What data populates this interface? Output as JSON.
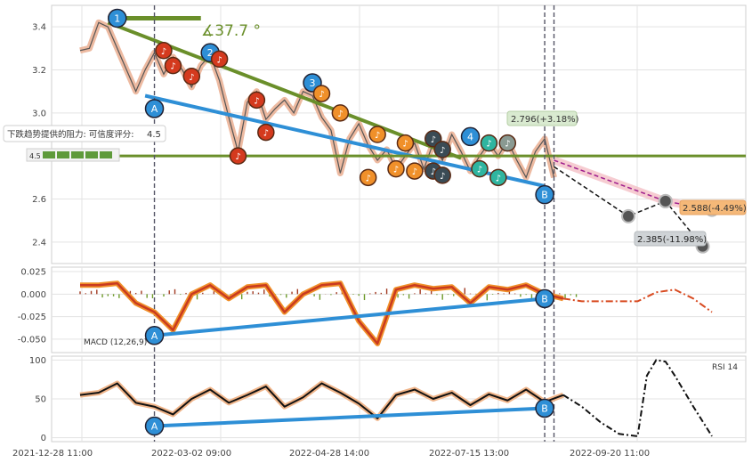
{
  "chart_data": [
    {
      "type": "line",
      "panel": "price",
      "ylim": [
        2.3,
        3.5
      ],
      "y_ticks": [
        2.4,
        2.6,
        2.8,
        3.0,
        3.2,
        3.4
      ],
      "grid": true,
      "series": [
        {
          "values_hint": "price",
          "x": [
            0,
            2,
            4,
            6,
            8,
            10,
            12,
            14,
            16,
            18,
            20,
            22,
            24,
            26,
            28,
            30,
            32,
            34,
            36,
            38,
            40,
            42,
            44,
            46,
            48,
            50,
            52,
            54,
            56,
            58,
            60,
            62,
            64,
            66,
            68,
            70,
            72,
            74,
            76,
            78,
            80,
            82,
            84,
            86,
            88,
            90,
            92,
            94,
            96,
            98,
            100,
            102
          ],
          "y": [
            3.29,
            3.3,
            3.42,
            3.4,
            3.3,
            3.2,
            3.1,
            3.2,
            3.28,
            3.18,
            3.26,
            3.2,
            3.12,
            3.22,
            3.27,
            3.15,
            2.98,
            2.82,
            3.05,
            3.1,
            2.97,
            3.02,
            3.06,
            3.0,
            3.1,
            3.08,
            2.98,
            2.92,
            2.72,
            2.88,
            2.95,
            2.85,
            2.78,
            2.83,
            2.74,
            2.8,
            2.86,
            2.74,
            2.86,
            2.78,
            2.9,
            2.82,
            2.73,
            2.8,
            2.86,
            2.8,
            2.87,
            2.78,
            2.7,
            2.82,
            2.88,
            2.7
          ]
        }
      ],
      "projections": [
        {
          "style": "pink-dashed",
          "points": [
            [
              102,
              2.78
            ],
            [
              126,
              2.59
            ],
            [
              136,
              2.55
            ]
          ]
        },
        {
          "style": "black-dashed",
          "points": [
            [
              102,
              2.75
            ],
            [
              118,
              2.52
            ],
            [
              126,
              2.59
            ],
            [
              134,
              2.38
            ]
          ]
        }
      ],
      "trendlines": {
        "upper_green": [
          [
            6,
            3.42
          ],
          [
            82,
            2.79
          ]
        ],
        "lower_blue": [
          [
            14,
            3.08
          ],
          [
            100,
            2.66
          ]
        ],
        "horizontal_green": 2.8,
        "top_green_bar": [
          [
            6,
            3.44
          ],
          [
            26,
            3.44
          ]
        ]
      },
      "annotations": {
        "angle": "∡37.7 °",
        "resistance_label": "下跌趋势提供的阻力: 可信度评分:",
        "resistance_score": "4.5",
        "resistance_score_small": "4.5",
        "target_up": "2.796(+3.18%)",
        "target_mid": "2.588(-4.49%)",
        "target_low": "2.385(-11.98%)"
      },
      "point_labels": {
        "one": "1",
        "two": "2",
        "three": "3",
        "four": "4",
        "A": "A",
        "B": "B"
      }
    },
    {
      "type": "line",
      "panel": "macd",
      "title": "MACD (12,26,9)",
      "ylim": [
        -0.065,
        0.03
      ],
      "y_ticks": [
        0.025,
        0.0,
        -0.025,
        -0.05
      ],
      "y_tick_labels": [
        "0.025",
        "0.000",
        "-0.025",
        "-0.050"
      ],
      "series": [
        {
          "name": "macd",
          "x": [
            0,
            4,
            8,
            12,
            16,
            20,
            24,
            28,
            32,
            36,
            40,
            44,
            48,
            52,
            56,
            60,
            64,
            68,
            72,
            76,
            80,
            84,
            88,
            92,
            96,
            100,
            104,
            108,
            112,
            116,
            120,
            124,
            128,
            132,
            136
          ],
          "y": [
            0.01,
            0.01,
            0.012,
            -0.01,
            -0.02,
            -0.04,
            0.0,
            0.01,
            -0.005,
            0.008,
            0.01,
            -0.02,
            0.0,
            0.01,
            0.012,
            -0.03,
            -0.055,
            0.005,
            0.01,
            0.006,
            0.008,
            -0.01,
            0.008,
            0.005,
            0.01,
            0.0,
            -0.005,
            -0.008,
            -0.008,
            -0.008,
            -0.008,
            0.002,
            0.005,
            -0.005,
            -0.02
          ]
        }
      ]
    },
    {
      "type": "line",
      "panel": "rsi",
      "title": "RSI 14",
      "ylim": [
        -5,
        105
      ],
      "y_ticks": [
        0,
        50,
        100
      ],
      "y_tick_labels": [
        "0",
        "50",
        "100"
      ],
      "series": [
        {
          "name": "rsi",
          "x": [
            0,
            4,
            8,
            12,
            16,
            20,
            24,
            28,
            32,
            36,
            40,
            44,
            48,
            52,
            56,
            60,
            64,
            68,
            72,
            76,
            80,
            84,
            88,
            92,
            96,
            100,
            104,
            108,
            112,
            116,
            120,
            122,
            124,
            126,
            128,
            132,
            136
          ],
          "y": [
            55,
            58,
            70,
            45,
            40,
            30,
            50,
            62,
            45,
            55,
            66,
            40,
            52,
            70,
            58,
            44,
            25,
            55,
            62,
            50,
            58,
            42,
            56,
            48,
            62,
            46,
            55,
            40,
            20,
            5,
            2,
            80,
            100,
            98,
            80,
            40,
            2
          ]
        }
      ]
    }
  ],
  "x_axis": {
    "tick_labels": [
      "2021-12-28 11:00",
      "2022-03-02 09:00",
      "2022-04-28 14:00",
      "2022-07-15 13:00",
      "2022-09-20 11:00"
    ]
  }
}
